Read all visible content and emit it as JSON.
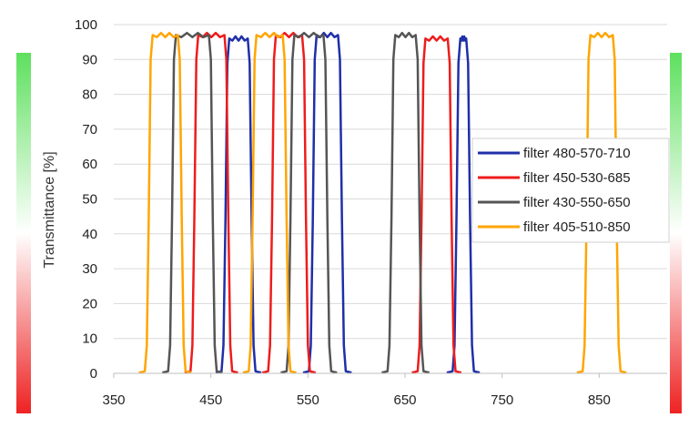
{
  "chart_data": {
    "type": "line",
    "ylabel": "Transmittance [%]",
    "xlabel": "",
    "title": "",
    "xlim": [
      350,
      920
    ],
    "ylim": [
      0,
      100
    ],
    "x_ticks": [
      350,
      450,
      550,
      650,
      750,
      850
    ],
    "y_ticks": [
      0,
      10,
      20,
      30,
      40,
      50,
      60,
      70,
      80,
      90,
      100
    ],
    "grid": "horizontal",
    "legend_position": "right",
    "side_gradient": {
      "top": "#5ee05e",
      "middle": "#ffffff",
      "bottom": "#ee2222"
    },
    "series": [
      {
        "name": "filter 480-570-710",
        "color": "#1f2fa8",
        "bands": [
          [
            465,
            492,
            97
          ],
          [
            555,
            585,
            98
          ],
          [
            703,
            717,
            97
          ]
        ]
      },
      {
        "name": "filter 450-530-685",
        "color": "#ee1c1c",
        "bands": [
          [
            433,
            468,
            98
          ],
          [
            513,
            548,
            98
          ],
          [
            667,
            698,
            97
          ]
        ]
      },
      {
        "name": "filter 430-550-650",
        "color": "#555555",
        "bands": [
          [
            410,
            452,
            98
          ],
          [
            532,
            570,
            98
          ],
          [
            636,
            665,
            98
          ]
        ]
      },
      {
        "name": "filter 405-510-850",
        "color": "#ffa500",
        "bands": [
          [
            386,
            420,
            98
          ],
          [
            493,
            528,
            98
          ],
          [
            837,
            868,
            98
          ]
        ]
      }
    ]
  }
}
